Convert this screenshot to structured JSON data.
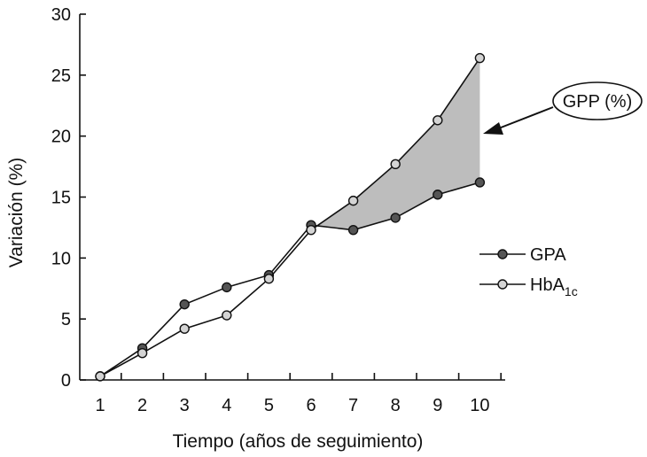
{
  "chart_data": {
    "type": "line",
    "title": "",
    "xlabel": "Tiempo (años de seguimiento)",
    "ylabel": "Variación (%)",
    "x": [
      1,
      2,
      3,
      4,
      5,
      6,
      7,
      8,
      9,
      10
    ],
    "ylim": [
      0,
      30
    ],
    "yticks": [
      0,
      5,
      10,
      15,
      20,
      25,
      30
    ],
    "grid": false,
    "legend_position": "right",
    "series": [
      {
        "name": "GPA",
        "marker_fill": "#555555",
        "values": [
          0.3,
          2.6,
          6.2,
          7.6,
          8.6,
          12.7,
          12.3,
          13.3,
          15.2,
          16.2
        ]
      },
      {
        "name": "HbA",
        "name_subscript": "1c",
        "marker_fill": "#d4d4d4",
        "values": [
          0.3,
          2.2,
          4.2,
          5.3,
          8.3,
          12.3,
          14.7,
          17.7,
          21.3,
          26.4
        ]
      }
    ],
    "shaded_area": {
      "between": [
        "GPA",
        "HbA"
      ],
      "from_x": 6,
      "to_x": 10,
      "color": "#bdbdbd"
    },
    "callout": {
      "text": "GPP (%)"
    }
  }
}
